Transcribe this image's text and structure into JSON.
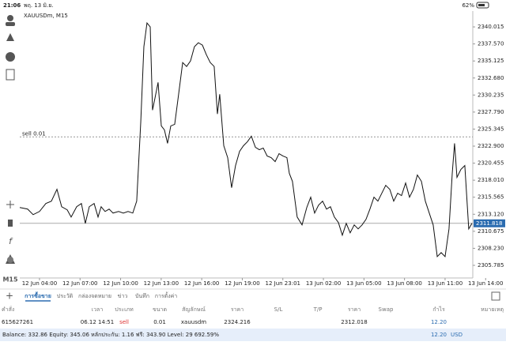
{
  "status_bar": {
    "time": "21:06",
    "date": "พฤ. 13 มิ.ย.",
    "battery": "62%"
  },
  "toolbar": {
    "timeframe": "M15"
  },
  "chart_data": {
    "type": "line",
    "symbol": "XAUUSDm, M15",
    "x": [
      2.54,
      3.12,
      3.53,
      4.0,
      4.47,
      4.88,
      5.29,
      5.64,
      6.05,
      6.34,
      6.75,
      7.1,
      7.39,
      7.68,
      8.04,
      8.33,
      8.56,
      8.85,
      9.15,
      9.44,
      9.85,
      10.2,
      10.55,
      10.9,
      11.19,
      11.49,
      11.72,
      11.95,
      12.19,
      12.36,
      12.54,
      12.77,
      13.01,
      13.24,
      13.47,
      13.71,
      14.0,
      14.29,
      14.59,
      14.88,
      15.17,
      15.46,
      15.75,
      16.05,
      16.34,
      16.63,
      16.92,
      17.16,
      17.33,
      17.63,
      17.92,
      18.21,
      18.5,
      18.8,
      19.09,
      19.38,
      19.67,
      19.97,
      20.26,
      20.55,
      20.84,
      21.13,
      21.43,
      21.72,
      22.01,
      22.3,
      22.48,
      22.71,
      23.06,
      23.42,
      23.77,
      24.06,
      24.35,
      24.64,
      24.94,
      25.23,
      25.52,
      25.81,
      26.11,
      26.4,
      26.69,
      26.98,
      27.28,
      27.57,
      27.86,
      28.15,
      28.44,
      28.74,
      29.03,
      29.32,
      29.61,
      29.91,
      30.2,
      30.49,
      30.78,
      31.08,
      31.37,
      31.66,
      31.95,
      32.25,
      32.54,
      32.83,
      33.12,
      33.42,
      33.71,
      34.0,
      34.29,
      34.53,
      34.7,
      34.88,
      35.17,
      35.46,
      35.75,
      35.99
    ],
    "series": [
      {
        "name": "XAUUSDm",
        "color": "#111111",
        "values": [
          2314.09,
          2313.86,
          2313.06,
          2313.52,
          2314.66,
          2315.0,
          2316.7,
          2314.2,
          2313.75,
          2312.72,
          2314.2,
          2314.66,
          2311.81,
          2314.2,
          2314.66,
          2312.72,
          2314.2,
          2313.52,
          2313.86,
          2313.29,
          2313.52,
          2313.29,
          2313.52,
          2313.29,
          2315.0,
          2326.37,
          2337.17,
          2340.58,
          2340.02,
          2328.07,
          2329.78,
          2332.05,
          2325.8,
          2325.23,
          2323.3,
          2325.8,
          2326.03,
          2330.35,
          2334.9,
          2334.33,
          2335.13,
          2337.17,
          2337.74,
          2337.4,
          2336.03,
          2334.9,
          2334.33,
          2327.51,
          2330.35,
          2322.96,
          2321.25,
          2316.93,
          2320.11,
          2322.16,
          2322.96,
          2323.53,
          2324.32,
          2322.73,
          2322.39,
          2322.62,
          2321.48,
          2321.25,
          2320.68,
          2321.82,
          2321.48,
          2321.25,
          2318.98,
          2317.84,
          2312.72,
          2311.59,
          2314.09,
          2315.57,
          2313.29,
          2314.43,
          2315.0,
          2313.86,
          2314.2,
          2312.72,
          2311.93,
          2310.11,
          2311.81,
          2310.45,
          2311.59,
          2311.02,
          2311.59,
          2312.38,
          2313.86,
          2315.57,
          2315.0,
          2316.14,
          2317.27,
          2316.7,
          2315.0,
          2316.14,
          2315.8,
          2317.61,
          2315.57,
          2316.7,
          2318.75,
          2317.84,
          2315.0,
          2313.29,
          2311.59,
          2307.04,
          2307.61,
          2307.04,
          2311.02,
          2318.98,
          2323.3,
          2318.41,
          2319.55,
          2320.11,
          2311.02,
          2311.82
        ]
      }
    ],
    "xlim": [
      2.54,
      36.05
    ],
    "xticks": [
      {
        "value": 4,
        "label": "12 Jun 04:00"
      },
      {
        "value": 7,
        "label": "12 Jun 07:00"
      },
      {
        "value": 10,
        "label": "12 Jun 10:00"
      },
      {
        "value": 13,
        "label": "12 Jun 13:00"
      },
      {
        "value": 16,
        "label": "12 Jun 16:00"
      },
      {
        "value": 19,
        "label": "12 Jun 19:00"
      },
      {
        "value": 22,
        "label": "12 Jun 23:01"
      },
      {
        "value": 25,
        "label": "13 Jun 02:00"
      },
      {
        "value": 28,
        "label": "13 Jun 05:00"
      },
      {
        "value": 31,
        "label": "13 Jun 08:00"
      },
      {
        "value": 34,
        "label": "13 Jun 11:00"
      },
      {
        "value": 37,
        "label": "13 Jun 14:00"
      }
    ],
    "ylim": [
      2303.97,
      2342.29
    ],
    "yticks": [
      2340.015,
      {
        "value": 2337.57,
        "label": "2337.570"
      },
      2335.125,
      {
        "value": 2332.68,
        "label": "2332.680"
      },
      2330.235,
      {
        "value": 2327.79,
        "label": "2327.790"
      },
      2325.345,
      {
        "value": 2322.9,
        "label": "2322.900"
      },
      2320.455,
      {
        "value": 2318.01,
        "label": "2318.010"
      },
      2315.565,
      {
        "value": 2313.12,
        "label": "2313.120"
      },
      2310.675,
      {
        "value": 2308.23,
        "label": "2308.230"
      },
      2305.785
    ],
    "sell_line": {
      "label": "sell 0.01",
      "price": 2324.216,
      "color": "#999999"
    },
    "current_price": {
      "value": 2311.818,
      "color": "#2b6cb0"
    }
  },
  "tabs": [
    "การซื้อขาย",
    "ประวัติ",
    "กล่องจดหมาย",
    "ข่าว",
    "บันทึก",
    "การตั้งค่า"
  ],
  "table": {
    "columns": [
      "คำสั่ง",
      "เวลา",
      "ประเภท",
      "ขนาด",
      "สัญลักษณ์",
      "ราคา",
      "S/L",
      "T/P",
      "ราคา",
      "Swap",
      "กำไร",
      "หมายเหตุ"
    ],
    "rows": [
      [
        "615627261",
        "06.12 14:51",
        "sell",
        "0.01",
        "xauusdm",
        "2324.216",
        "",
        "",
        "2312.018",
        "",
        "12.20",
        ""
      ]
    ]
  },
  "footer": {
    "balance": "Balance: 332.86 Equity: 345.06 หลักประกัน: 1.16 ฟรี: 343.90 Level: 29 692.59%",
    "profit": "12.20",
    "currency": "USD"
  }
}
